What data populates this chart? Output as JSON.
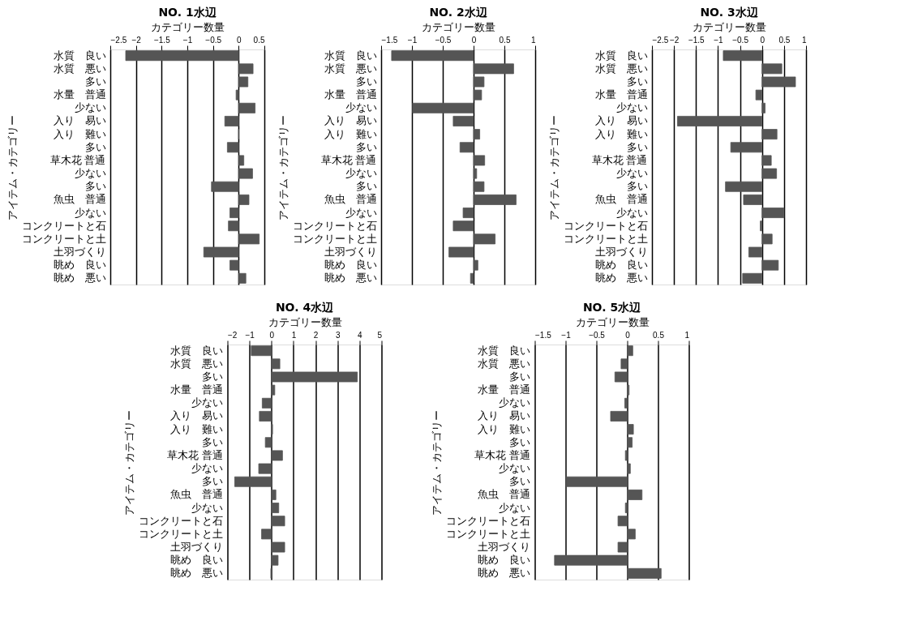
{
  "chart_data": [
    {
      "type": "bar",
      "orientation": "horizontal",
      "title": "NO. 1水辺",
      "xlabel": "カテゴリー数量",
      "ylabel": "アイテム・カテゴリー",
      "grid": "x",
      "color": "#555555",
      "categories": [
        "水質　良い",
        "水質　悪い",
        "多い",
        "水量　普通",
        "少ない",
        "入り　易い",
        "入り　難い",
        "多い",
        "草木花 普通",
        "少ない",
        "多い",
        "魚虫　普通",
        "少ない",
        "コンクリートと石",
        "コンクリートと土",
        "土羽づくり",
        "眺め　良い",
        "眺め　悪い"
      ],
      "values": [
        -2.2,
        0.28,
        0.18,
        -0.05,
        0.32,
        -0.27,
        0,
        -0.22,
        0.1,
        0.27,
        -0.53,
        0.2,
        -0.17,
        -0.2,
        0.4,
        -0.68,
        -0.17,
        0.14
      ],
      "xlim": [
        -2.5,
        0.5
      ],
      "xticks": [
        -2.5,
        -2,
        -1.5,
        -1,
        -0.5,
        0,
        0.5
      ]
    },
    {
      "type": "bar",
      "orientation": "horizontal",
      "title": "NO. 2水辺",
      "xlabel": "カテゴリー数量",
      "ylabel": "アイテム・カテゴリー",
      "grid": "x",
      "color": "#555555",
      "categories": [
        "水質　良い",
        "水質　悪い",
        "多い",
        "水量　普通",
        "少ない",
        "入り　易い",
        "入り　難い",
        "多い",
        "草木花 普通",
        "少ない",
        "多い",
        "魚虫　普通",
        "少ない",
        "コンクリートと石",
        "コンクリートと土",
        "土羽づくり",
        "眺め　良い",
        "眺め　悪い"
      ],
      "values": [
        -1.33,
        0.65,
        0.17,
        0.13,
        -0.99,
        -0.33,
        0.1,
        -0.22,
        0.18,
        0.05,
        0.17,
        0.69,
        -0.17,
        -0.33,
        0.35,
        -0.4,
        0.07,
        -0.05
      ],
      "xlim": [
        -1.5,
        1
      ],
      "xticks": [
        -1.5,
        -1,
        -0.5,
        0,
        0.5,
        1
      ]
    },
    {
      "type": "bar",
      "orientation": "horizontal",
      "title": "NO. 3水辺",
      "xlabel": "カテゴリー数量",
      "ylabel": "アイテム・カテゴリー",
      "grid": "x",
      "color": "#555555",
      "categories": [
        "水質　良い",
        "水質　悪い",
        "多い",
        "水量　普通",
        "少ない",
        "入り　易い",
        "入り　難い",
        "多い",
        "草木花 普通",
        "少ない",
        "多い",
        "魚虫　普通",
        "少ない",
        "コンクリートと石",
        "コンクリートと土",
        "土羽づくり",
        "眺め　良い",
        "眺め　悪い"
      ],
      "values": [
        -0.88,
        0.45,
        0.76,
        -0.14,
        0.07,
        -1.92,
        0.34,
        -0.71,
        0.21,
        0.33,
        -0.83,
        -0.42,
        0.5,
        -0.04,
        0.23,
        -0.3,
        0.37,
        -0.44
      ],
      "xlim": [
        -2.5,
        1
      ],
      "xticks": [
        -2.5,
        -2,
        -1.5,
        -1,
        -0.5,
        0,
        0.5,
        1
      ]
    },
    {
      "type": "bar",
      "orientation": "horizontal",
      "title": "NO. 4水辺",
      "xlabel": "カテゴリー数量",
      "ylabel": "アイテム・カテゴリー",
      "grid": "x",
      "color": "#555555",
      "categories": [
        "水質　良い",
        "水質　悪い",
        "多い",
        "水量　普通",
        "少ない",
        "入り　易い",
        "入り　難い",
        "多い",
        "草木花 普通",
        "少ない",
        "多い",
        "魚虫　普通",
        "少ない",
        "コンクリートと石",
        "コンクリートと土",
        "土羽づくり",
        "眺め　良い",
        "眺め　悪い"
      ],
      "values": [
        -0.92,
        0.38,
        3.9,
        0.15,
        -0.42,
        -0.55,
        0.05,
        -0.28,
        0.5,
        -0.58,
        -1.67,
        0.2,
        0.33,
        0.6,
        -0.45,
        0.6,
        0.3,
        -0.03
      ],
      "xlim": [
        -2,
        5
      ],
      "xticks": [
        -2,
        -1,
        0,
        1,
        2,
        3,
        4,
        5
      ]
    },
    {
      "type": "bar",
      "orientation": "horizontal",
      "title": "NO. 5水辺",
      "xlabel": "カテゴリー数量",
      "ylabel": "アイテム・カテゴリー",
      "grid": "x",
      "color": "#555555",
      "categories": [
        "水質　良い",
        "水質　悪い",
        "多い",
        "水量　普通",
        "少ない",
        "入り　易い",
        "入り　難い",
        "多い",
        "草木花 普通",
        "少ない",
        "多い",
        "魚虫　普通",
        "少ない",
        "コンクリートと石",
        "コンクリートと土",
        "土羽づくり",
        "眺め　良い",
        "眺め　悪い"
      ],
      "values": [
        0.09,
        -0.1,
        -0.2,
        0.03,
        -0.04,
        -0.27,
        0.1,
        0.08,
        -0.03,
        0.05,
        -0.99,
        0.24,
        -0.03,
        -0.15,
        0.13,
        -0.15,
        -1.18,
        0.55
      ],
      "xlim": [
        -1.5,
        1
      ],
      "xticks": [
        -1.5,
        -1,
        -0.5,
        0,
        0.5,
        1
      ]
    }
  ]
}
